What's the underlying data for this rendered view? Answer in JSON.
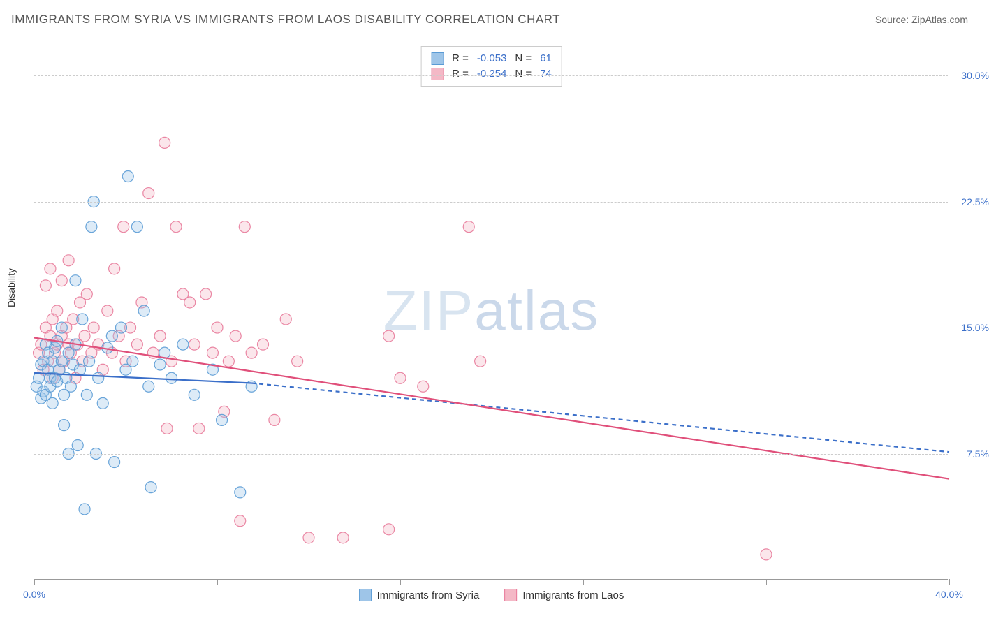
{
  "title": "IMMIGRANTS FROM SYRIA VS IMMIGRANTS FROM LAOS DISABILITY CORRELATION CHART",
  "source": "Source: ZipAtlas.com",
  "ylabel": "Disability",
  "watermark": {
    "bold": "ZIP",
    "light": "atlas"
  },
  "chart": {
    "type": "scatter-with-regression",
    "x_range": [
      0,
      40
    ],
    "y_range": [
      0,
      32
    ],
    "x_ticks": [
      0,
      4,
      8,
      12,
      16,
      20,
      24,
      28,
      32,
      40
    ],
    "x_tick_labels": {
      "0": "0.0%",
      "40": "40.0%"
    },
    "y_gridlines": [
      7.5,
      15.0,
      22.5,
      30.0
    ],
    "y_tick_labels": [
      "7.5%",
      "15.0%",
      "22.5%",
      "30.0%"
    ],
    "grid_color": "#cccccc",
    "axis_color": "#999999",
    "tick_label_color": "#3b6fc9",
    "marker_radius": 8,
    "marker_fill_opacity": 0.35,
    "marker_stroke_opacity": 0.9,
    "marker_stroke_width": 1.2,
    "series": {
      "syria": {
        "label": "Immigrants from Syria",
        "fill": "#9ec5e8",
        "stroke": "#5a9bd5",
        "R": "-0.053",
        "N": "61",
        "regression": {
          "solid": {
            "x1": 0,
            "y1": 12.3,
            "x2": 9.5,
            "y2": 11.7
          },
          "dashed": {
            "x1": 9.5,
            "y1": 11.7,
            "x2": 40,
            "y2": 7.6
          },
          "color": "#3b6fc9",
          "width": 2.2
        },
        "points": [
          [
            0.1,
            11.5
          ],
          [
            0.2,
            12.0
          ],
          [
            0.3,
            10.8
          ],
          [
            0.3,
            12.8
          ],
          [
            0.4,
            11.2
          ],
          [
            0.4,
            13.0
          ],
          [
            0.5,
            14.0
          ],
          [
            0.5,
            11.0
          ],
          [
            0.6,
            12.5
          ],
          [
            0.6,
            13.5
          ],
          [
            0.7,
            12.0
          ],
          [
            0.7,
            11.5
          ],
          [
            0.8,
            13.0
          ],
          [
            0.8,
            10.5
          ],
          [
            0.9,
            12.0
          ],
          [
            0.9,
            13.8
          ],
          [
            1.0,
            14.2
          ],
          [
            1.0,
            11.8
          ],
          [
            1.1,
            12.5
          ],
          [
            1.2,
            13.0
          ],
          [
            1.2,
            15.0
          ],
          [
            1.3,
            11.0
          ],
          [
            1.3,
            9.2
          ],
          [
            1.4,
            12.0
          ],
          [
            1.5,
            13.5
          ],
          [
            1.5,
            7.5
          ],
          [
            1.6,
            11.5
          ],
          [
            1.7,
            12.8
          ],
          [
            1.8,
            14.0
          ],
          [
            1.8,
            17.8
          ],
          [
            1.9,
            8.0
          ],
          [
            2.0,
            12.5
          ],
          [
            2.1,
            15.5
          ],
          [
            2.2,
            4.2
          ],
          [
            2.3,
            11.0
          ],
          [
            2.4,
            13.0
          ],
          [
            2.5,
            21.0
          ],
          [
            2.6,
            22.5
          ],
          [
            2.7,
            7.5
          ],
          [
            2.8,
            12.0
          ],
          [
            3.0,
            10.5
          ],
          [
            3.2,
            13.8
          ],
          [
            3.4,
            14.5
          ],
          [
            3.5,
            7.0
          ],
          [
            3.8,
            15.0
          ],
          [
            4.0,
            12.5
          ],
          [
            4.1,
            24.0
          ],
          [
            4.3,
            13.0
          ],
          [
            4.5,
            21.0
          ],
          [
            4.8,
            16.0
          ],
          [
            5.0,
            11.5
          ],
          [
            5.1,
            5.5
          ],
          [
            5.5,
            12.8
          ],
          [
            5.7,
            13.5
          ],
          [
            6.0,
            12.0
          ],
          [
            6.5,
            14.0
          ],
          [
            7.0,
            11.0
          ],
          [
            7.8,
            12.5
          ],
          [
            8.2,
            9.5
          ],
          [
            9.0,
            5.2
          ],
          [
            9.5,
            11.5
          ]
        ]
      },
      "laos": {
        "label": "Immigrants from Laos",
        "fill": "#f4b8c6",
        "stroke": "#e87a9a",
        "R": "-0.254",
        "N": "74",
        "regression": {
          "solid": {
            "x1": 0,
            "y1": 14.4,
            "x2": 40,
            "y2": 6.0
          },
          "color": "#e04f7a",
          "width": 2.2
        },
        "points": [
          [
            0.2,
            13.5
          ],
          [
            0.3,
            14.0
          ],
          [
            0.4,
            12.5
          ],
          [
            0.5,
            15.0
          ],
          [
            0.5,
            17.5
          ],
          [
            0.6,
            13.0
          ],
          [
            0.7,
            14.5
          ],
          [
            0.7,
            18.5
          ],
          [
            0.8,
            12.0
          ],
          [
            0.8,
            15.5
          ],
          [
            0.9,
            13.5
          ],
          [
            1.0,
            14.0
          ],
          [
            1.0,
            16.0
          ],
          [
            1.1,
            12.5
          ],
          [
            1.2,
            14.5
          ],
          [
            1.2,
            17.8
          ],
          [
            1.3,
            13.0
          ],
          [
            1.4,
            15.0
          ],
          [
            1.5,
            14.0
          ],
          [
            1.5,
            19.0
          ],
          [
            1.6,
            13.5
          ],
          [
            1.7,
            15.5
          ],
          [
            1.8,
            12.0
          ],
          [
            1.9,
            14.0
          ],
          [
            2.0,
            16.5
          ],
          [
            2.1,
            13.0
          ],
          [
            2.2,
            14.5
          ],
          [
            2.3,
            17.0
          ],
          [
            2.5,
            13.5
          ],
          [
            2.6,
            15.0
          ],
          [
            2.8,
            14.0
          ],
          [
            3.0,
            12.5
          ],
          [
            3.2,
            16.0
          ],
          [
            3.4,
            13.5
          ],
          [
            3.5,
            18.5
          ],
          [
            3.7,
            14.5
          ],
          [
            3.9,
            21.0
          ],
          [
            4.0,
            13.0
          ],
          [
            4.2,
            15.0
          ],
          [
            4.5,
            14.0
          ],
          [
            4.7,
            16.5
          ],
          [
            5.0,
            23.0
          ],
          [
            5.2,
            13.5
          ],
          [
            5.5,
            14.5
          ],
          [
            5.7,
            26.0
          ],
          [
            5.8,
            9.0
          ],
          [
            6.0,
            13.0
          ],
          [
            6.2,
            21.0
          ],
          [
            6.5,
            17.0
          ],
          [
            6.8,
            16.5
          ],
          [
            7.0,
            14.0
          ],
          [
            7.2,
            9.0
          ],
          [
            7.5,
            17.0
          ],
          [
            7.8,
            13.5
          ],
          [
            8.0,
            15.0
          ],
          [
            8.3,
            10.0
          ],
          [
            8.5,
            13.0
          ],
          [
            8.8,
            14.5
          ],
          [
            9.2,
            21.0
          ],
          [
            9.5,
            13.5
          ],
          [
            10.0,
            14.0
          ],
          [
            10.5,
            9.5
          ],
          [
            11.0,
            15.5
          ],
          [
            11.5,
            13.0
          ],
          [
            12.0,
            2.5
          ],
          [
            13.5,
            2.5
          ],
          [
            15.5,
            3.0
          ],
          [
            16.0,
            12.0
          ],
          [
            17.0,
            11.5
          ],
          [
            19.0,
            21.0
          ],
          [
            19.5,
            13.0
          ],
          [
            32.0,
            1.5
          ],
          [
            15.5,
            14.5
          ],
          [
            9.0,
            3.5
          ]
        ]
      }
    }
  },
  "legend_stats": [
    {
      "swatch_fill": "#9ec5e8",
      "swatch_stroke": "#5a9bd5",
      "R_label": "R =",
      "R": "-0.053",
      "N_label": "N =",
      "N": "61"
    },
    {
      "swatch_fill": "#f4b8c6",
      "swatch_stroke": "#e87a9a",
      "R_label": "R =",
      "R": "-0.254",
      "N_label": "N =",
      "N": "74"
    }
  ],
  "bottom_legend": [
    {
      "swatch_fill": "#9ec5e8",
      "swatch_stroke": "#5a9bd5",
      "label": "Immigrants from Syria"
    },
    {
      "swatch_fill": "#f4b8c6",
      "swatch_stroke": "#e87a9a",
      "label": "Immigrants from Laos"
    }
  ]
}
